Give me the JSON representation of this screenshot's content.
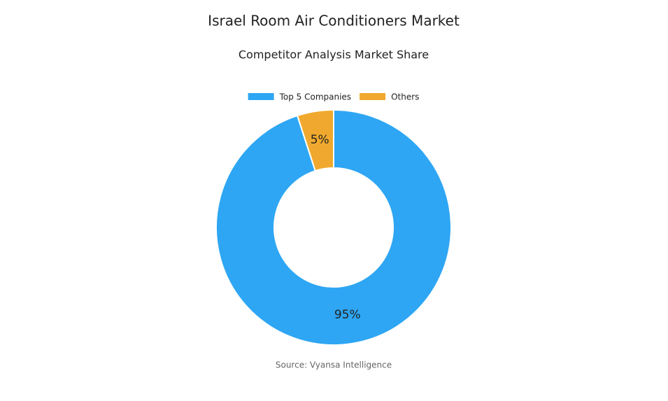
{
  "chart_data": {
    "type": "donut",
    "title": "Israel Room Air Conditioners Market",
    "subtitle": "Competitor Analysis Market Share",
    "categories": [
      "Top 5 Companies",
      "Others"
    ],
    "values": [
      95,
      5
    ],
    "value_labels": [
      "95%",
      "5%"
    ],
    "colors": [
      "#2ea6f3",
      "#f0a92e"
    ],
    "source": "Source: Vyansa Intelligence"
  }
}
